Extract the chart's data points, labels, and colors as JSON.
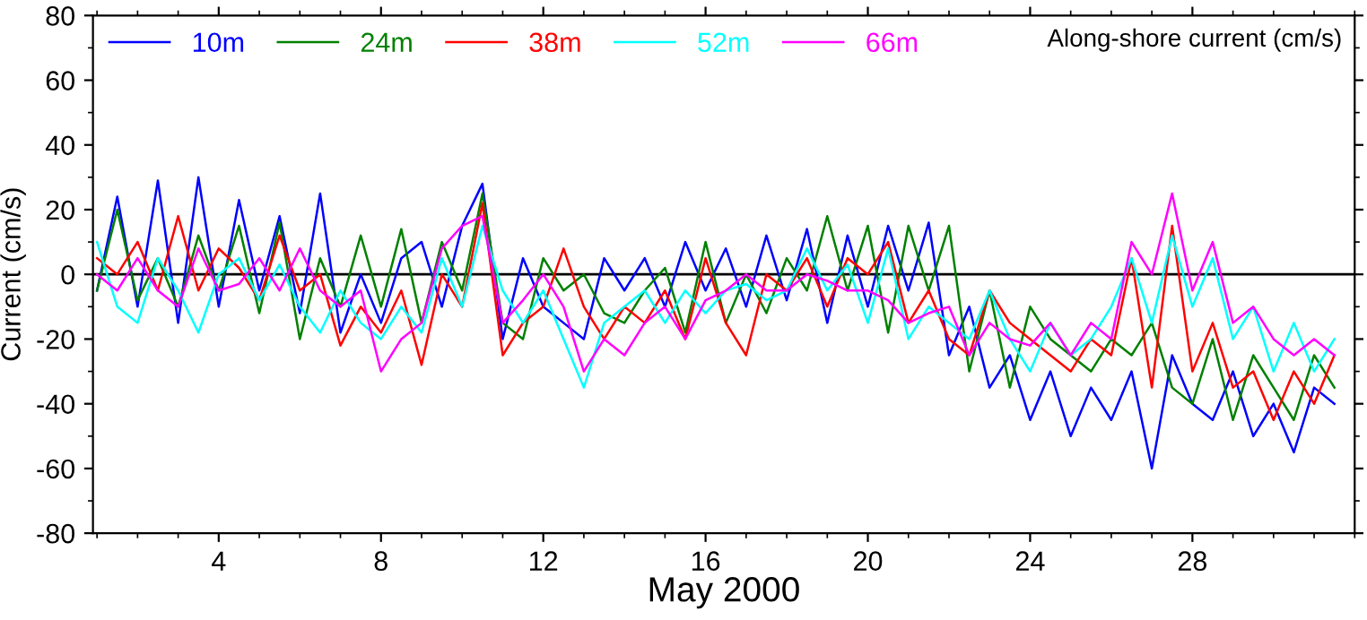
{
  "chart_data": {
    "type": "line",
    "xlabel": "May 2000",
    "ylabel": "Current (cm/s)",
    "annotations": [
      "Along-shore current (cm/s)"
    ],
    "x": [
      1,
      1.5,
      2,
      2.5,
      3,
      3.5,
      4,
      4.5,
      5,
      5.5,
      6,
      6.5,
      7,
      7.5,
      8,
      8.5,
      9,
      9.5,
      10,
      10.5,
      11,
      11.5,
      12,
      12.5,
      13,
      13.5,
      14,
      14.5,
      15,
      15.5,
      16,
      16.5,
      17,
      17.5,
      18,
      18.5,
      19,
      19.5,
      20,
      20.5,
      21,
      21.5,
      22,
      22.5,
      23,
      23.5,
      24,
      24.5,
      25,
      25.5,
      26,
      26.5,
      27,
      27.5,
      28,
      28.5,
      29,
      29.5,
      30,
      30.5,
      31,
      31.5
    ],
    "series": [
      {
        "name": "10m",
        "color": "#0000ff",
        "values": [
          -5,
          24,
          -10,
          29,
          -15,
          30,
          -10,
          23,
          -5,
          18,
          -12,
          25,
          -18,
          0,
          -15,
          5,
          10,
          -10,
          15,
          28,
          -20,
          5,
          -10,
          -15,
          -20,
          5,
          -5,
          5,
          -10,
          10,
          -5,
          8,
          -10,
          12,
          -8,
          14,
          -15,
          12,
          -10,
          15,
          -5,
          16,
          -25,
          -10,
          -35,
          -25,
          -45,
          -30,
          -50,
          -35,
          -45,
          -30,
          -60,
          -25,
          -40,
          -45,
          -30,
          -50,
          -40,
          -55,
          -35,
          -40
        ]
      },
      {
        "name": "24m",
        "color": "#008000",
        "values": [
          -5,
          20,
          -8,
          5,
          -10,
          12,
          -5,
          15,
          -12,
          16,
          -20,
          5,
          -10,
          12,
          -10,
          14,
          -15,
          10,
          -5,
          25,
          -15,
          -20,
          5,
          -5,
          0,
          -12,
          -15,
          -5,
          2,
          -18,
          10,
          -15,
          0,
          -12,
          5,
          -5,
          18,
          -5,
          15,
          -18,
          15,
          -5,
          15,
          -30,
          -5,
          -35,
          -10,
          -20,
          -25,
          -30,
          -20,
          -25,
          -15,
          -35,
          -40,
          -20,
          -45,
          -25,
          -35,
          -45,
          -25,
          -35
        ]
      },
      {
        "name": "38m",
        "color": "#ff0000",
        "values": [
          5,
          0,
          10,
          -5,
          18,
          -5,
          8,
          2,
          -8,
          12,
          -5,
          0,
          -22,
          -10,
          -18,
          -5,
          -28,
          0,
          -10,
          22,
          -25,
          -15,
          -10,
          8,
          -10,
          -20,
          -10,
          -15,
          -5,
          -20,
          5,
          -15,
          -25,
          0,
          -5,
          5,
          -10,
          5,
          0,
          10,
          -15,
          -5,
          -20,
          -25,
          -5,
          -15,
          -20,
          -25,
          -30,
          -20,
          -25,
          5,
          -35,
          15,
          -30,
          -15,
          -35,
          -30,
          -45,
          -30,
          -40,
          -25
        ]
      },
      {
        "name": "52m",
        "color": "#00ffff",
        "values": [
          10,
          -10,
          -15,
          5,
          -5,
          -18,
          0,
          5,
          -8,
          3,
          -10,
          -18,
          -5,
          -15,
          -20,
          -10,
          -18,
          5,
          -10,
          15,
          -5,
          -15,
          -5,
          -20,
          -35,
          -15,
          -10,
          -5,
          -15,
          -5,
          -12,
          -5,
          -3,
          -8,
          -5,
          8,
          -5,
          3,
          -15,
          8,
          -20,
          -10,
          -15,
          -20,
          -5,
          -20,
          -30,
          -15,
          -25,
          -20,
          -10,
          5,
          -15,
          12,
          -10,
          5,
          -20,
          -10,
          -30,
          -15,
          -30,
          -20
        ]
      },
      {
        "name": "66m",
        "color": "#ff00ff",
        "values": [
          0,
          -5,
          5,
          -5,
          -10,
          8,
          -5,
          -3,
          5,
          -5,
          8,
          -5,
          -10,
          -5,
          -30,
          -20,
          -15,
          8,
          15,
          18,
          -15,
          -8,
          0,
          -10,
          -30,
          -20,
          -25,
          -15,
          -10,
          -20,
          -8,
          -5,
          0,
          -5,
          -5,
          0,
          -2,
          -5,
          -5,
          -8,
          -15,
          -12,
          -10,
          -25,
          -15,
          -20,
          -22,
          -15,
          -25,
          -15,
          -20,
          10,
          0,
          25,
          -5,
          10,
          -15,
          -10,
          -20,
          -25,
          -20,
          -25
        ]
      }
    ],
    "xlim": [
      0.9,
      32
    ],
    "xticks": [
      4,
      8,
      12,
      16,
      20,
      24,
      28
    ],
    "ylim": [
      -80,
      80
    ],
    "yticks": [
      -80,
      -60,
      -40,
      -20,
      0,
      20,
      40,
      60,
      80
    ],
    "ref_lines": [
      {
        "axis": "y",
        "value": 0,
        "color": "#000000"
      }
    ],
    "legend": "top left",
    "grid": false
  }
}
